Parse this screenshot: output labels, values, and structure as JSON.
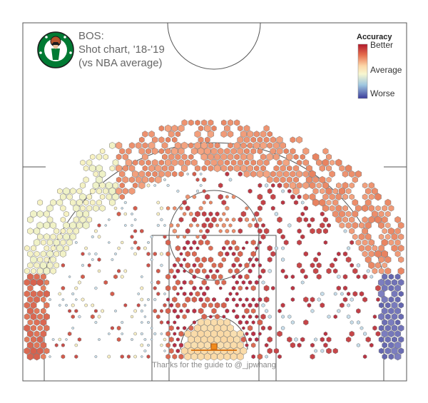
{
  "chart_data": {
    "type": "hexbin",
    "team": "BOS",
    "title": "BOS:",
    "subtitle": "Shot chart, '18-'19",
    "comparison": "(vs NBA average)",
    "legend": {
      "title": "Accuracy",
      "labels": [
        "Better",
        "Average",
        "Worse"
      ],
      "colors": [
        "#b2182b",
        "#ef8a62",
        "#fddbc7",
        "#f7f7c0",
        "#d1e5f0",
        "#67a9cf",
        "#3b3c9b"
      ]
    },
    "credit": "Thanks for the guide to @_jpwhang",
    "regions": [
      {
        "zone": "left corner three",
        "accuracy": "better",
        "volume": "high"
      },
      {
        "zone": "left wing three",
        "accuracy": "average",
        "volume": "high"
      },
      {
        "zone": "above the break three",
        "accuracy": "better",
        "volume": "high"
      },
      {
        "zone": "right wing three",
        "accuracy": "better",
        "volume": "high"
      },
      {
        "zone": "right corner three",
        "accuracy": "worse",
        "volume": "high"
      },
      {
        "zone": "mid-range left baseline",
        "accuracy": "mixed",
        "volume": "low"
      },
      {
        "zone": "mid-range right baseline",
        "accuracy": "better",
        "volume": "medium"
      },
      {
        "zone": "paint",
        "accuracy": "better",
        "volume": "medium"
      },
      {
        "zone": "free throw circle",
        "accuracy": "better",
        "volume": "medium"
      },
      {
        "zone": "restricted area",
        "accuracy": "average",
        "volume": "very high"
      }
    ]
  },
  "logo": {
    "name": "Boston Celtics",
    "colors": [
      "#007a33",
      "#ffffff",
      "#ba9653",
      "#000000"
    ]
  }
}
